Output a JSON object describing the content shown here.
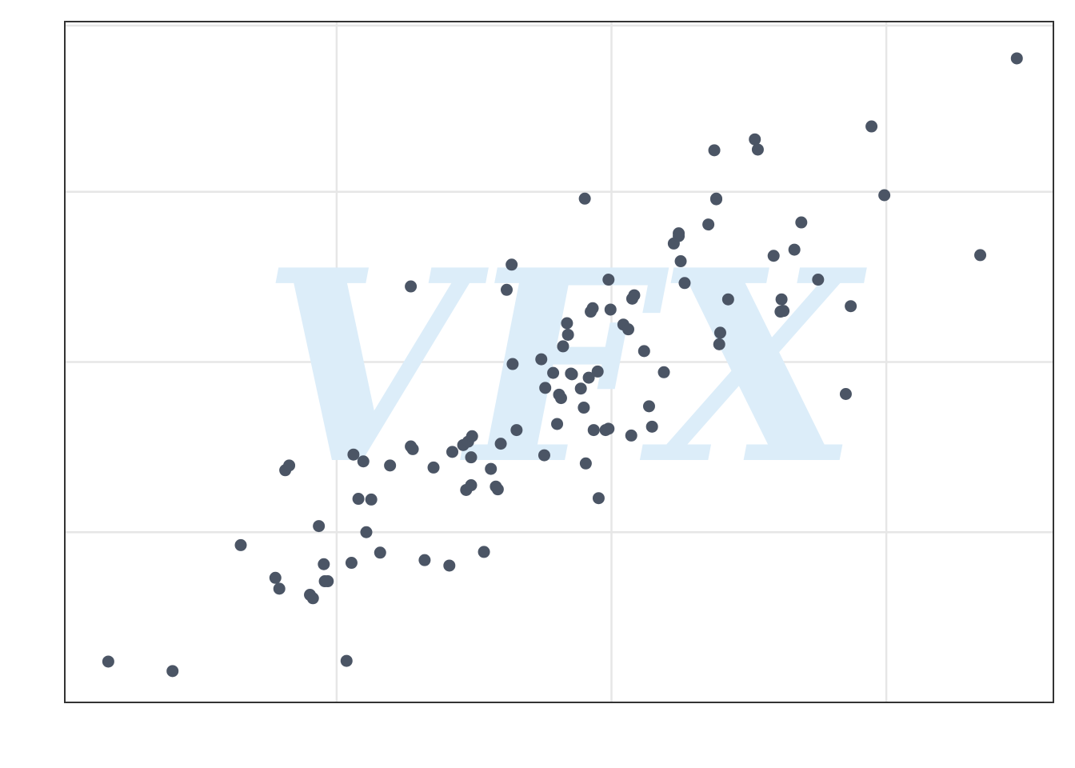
{
  "chart_data": {
    "type": "scatter",
    "title": "",
    "xlabel": "",
    "ylabel": "",
    "xlim": [
      0,
      100
    ],
    "ylim": [
      0,
      100
    ],
    "xticks": [
      27.5,
      55.3,
      83.1
    ],
    "yticks": [
      25,
      50,
      75,
      100
    ],
    "grid": true,
    "legend": "none",
    "watermark": "VFX",
    "colors": {
      "points": "#4b5565",
      "grid": "#e6e6e6",
      "frame": "#333333",
      "watermark": "#dcedf9"
    },
    "series": [
      {
        "name": "points",
        "x": [
          4.4,
          10.9,
          17.8,
          21.3,
          21.7,
          22.3,
          22.7,
          24.8,
          25.1,
          25.7,
          26.2,
          26.3,
          26.6,
          28.5,
          29.0,
          29.2,
          29.7,
          30.5,
          31.0,
          31.9,
          32.9,
          35.0,
          35.2,
          36.4,
          37.3,
          38.9,
          39.2,
          40.3,
          40.6,
          40.8,
          41.1,
          41.2,
          42.4,
          43.1,
          43.6,
          43.8,
          44.7,
          45.2,
          45.3,
          48.2,
          48.6,
          49.4,
          49.8,
          50.0,
          50.2,
          50.4,
          50.8,
          50.9,
          51.2,
          51.3,
          52.2,
          52.5,
          52.6,
          53.0,
          53.2,
          53.4,
          53.5,
          53.9,
          54.0,
          55.0,
          55.0,
          55.2,
          56.5,
          57.0,
          57.3,
          57.4,
          57.6,
          58.6,
          59.1,
          59.4,
          61.6,
          62.1,
          62.1,
          62.3,
          62.7,
          65.1,
          65.7,
          65.9,
          65.9,
          66.2,
          66.3,
          67.1,
          69.8,
          70.1,
          71.7,
          72.4,
          72.5,
          72.7,
          73.8,
          74.5,
          76.2,
          79.0,
          79.5,
          81.6,
          82.9,
          92.6,
          96.3,
          30.2,
          35.0,
          41.1,
          44.1,
          45.7,
          48.5,
          52.7,
          54.7,
          60.6
        ],
        "y": [
          6.0,
          4.6,
          23.1,
          18.3,
          16.7,
          34.1,
          34.8,
          15.8,
          15.3,
          25.9,
          20.3,
          17.8,
          17.8,
          6.1,
          20.5,
          36.4,
          29.9,
          25.0,
          29.8,
          22.0,
          34.8,
          37.6,
          37.2,
          20.9,
          34.5,
          20.1,
          36.8,
          37.8,
          31.2,
          38.3,
          31.9,
          39.1,
          22.1,
          34.3,
          31.7,
          31.3,
          60.6,
          64.3,
          49.7,
          50.4,
          46.2,
          48.4,
          40.9,
          45.2,
          44.7,
          52.3,
          55.7,
          54.0,
          48.3,
          48.2,
          46.1,
          43.3,
          74.0,
          47.7,
          57.4,
          57.9,
          40.0,
          48.6,
          30.0,
          40.2,
          62.1,
          57.7,
          55.5,
          54.8,
          39.2,
          59.3,
          59.8,
          51.6,
          43.5,
          40.5,
          67.4,
          68.5,
          68.9,
          64.8,
          61.6,
          70.2,
          81.1,
          73.9,
          74.0,
          52.6,
          54.3,
          59.2,
          82.7,
          81.2,
          65.6,
          57.4,
          59.2,
          57.5,
          66.5,
          70.5,
          62.1,
          45.3,
          58.2,
          84.6,
          74.5,
          65.7,
          94.6,
          35.4,
          61.1,
          36.0,
          38.0,
          40.0,
          36.3,
          35.1,
          40.0,
          48.5
        ]
      }
    ]
  }
}
